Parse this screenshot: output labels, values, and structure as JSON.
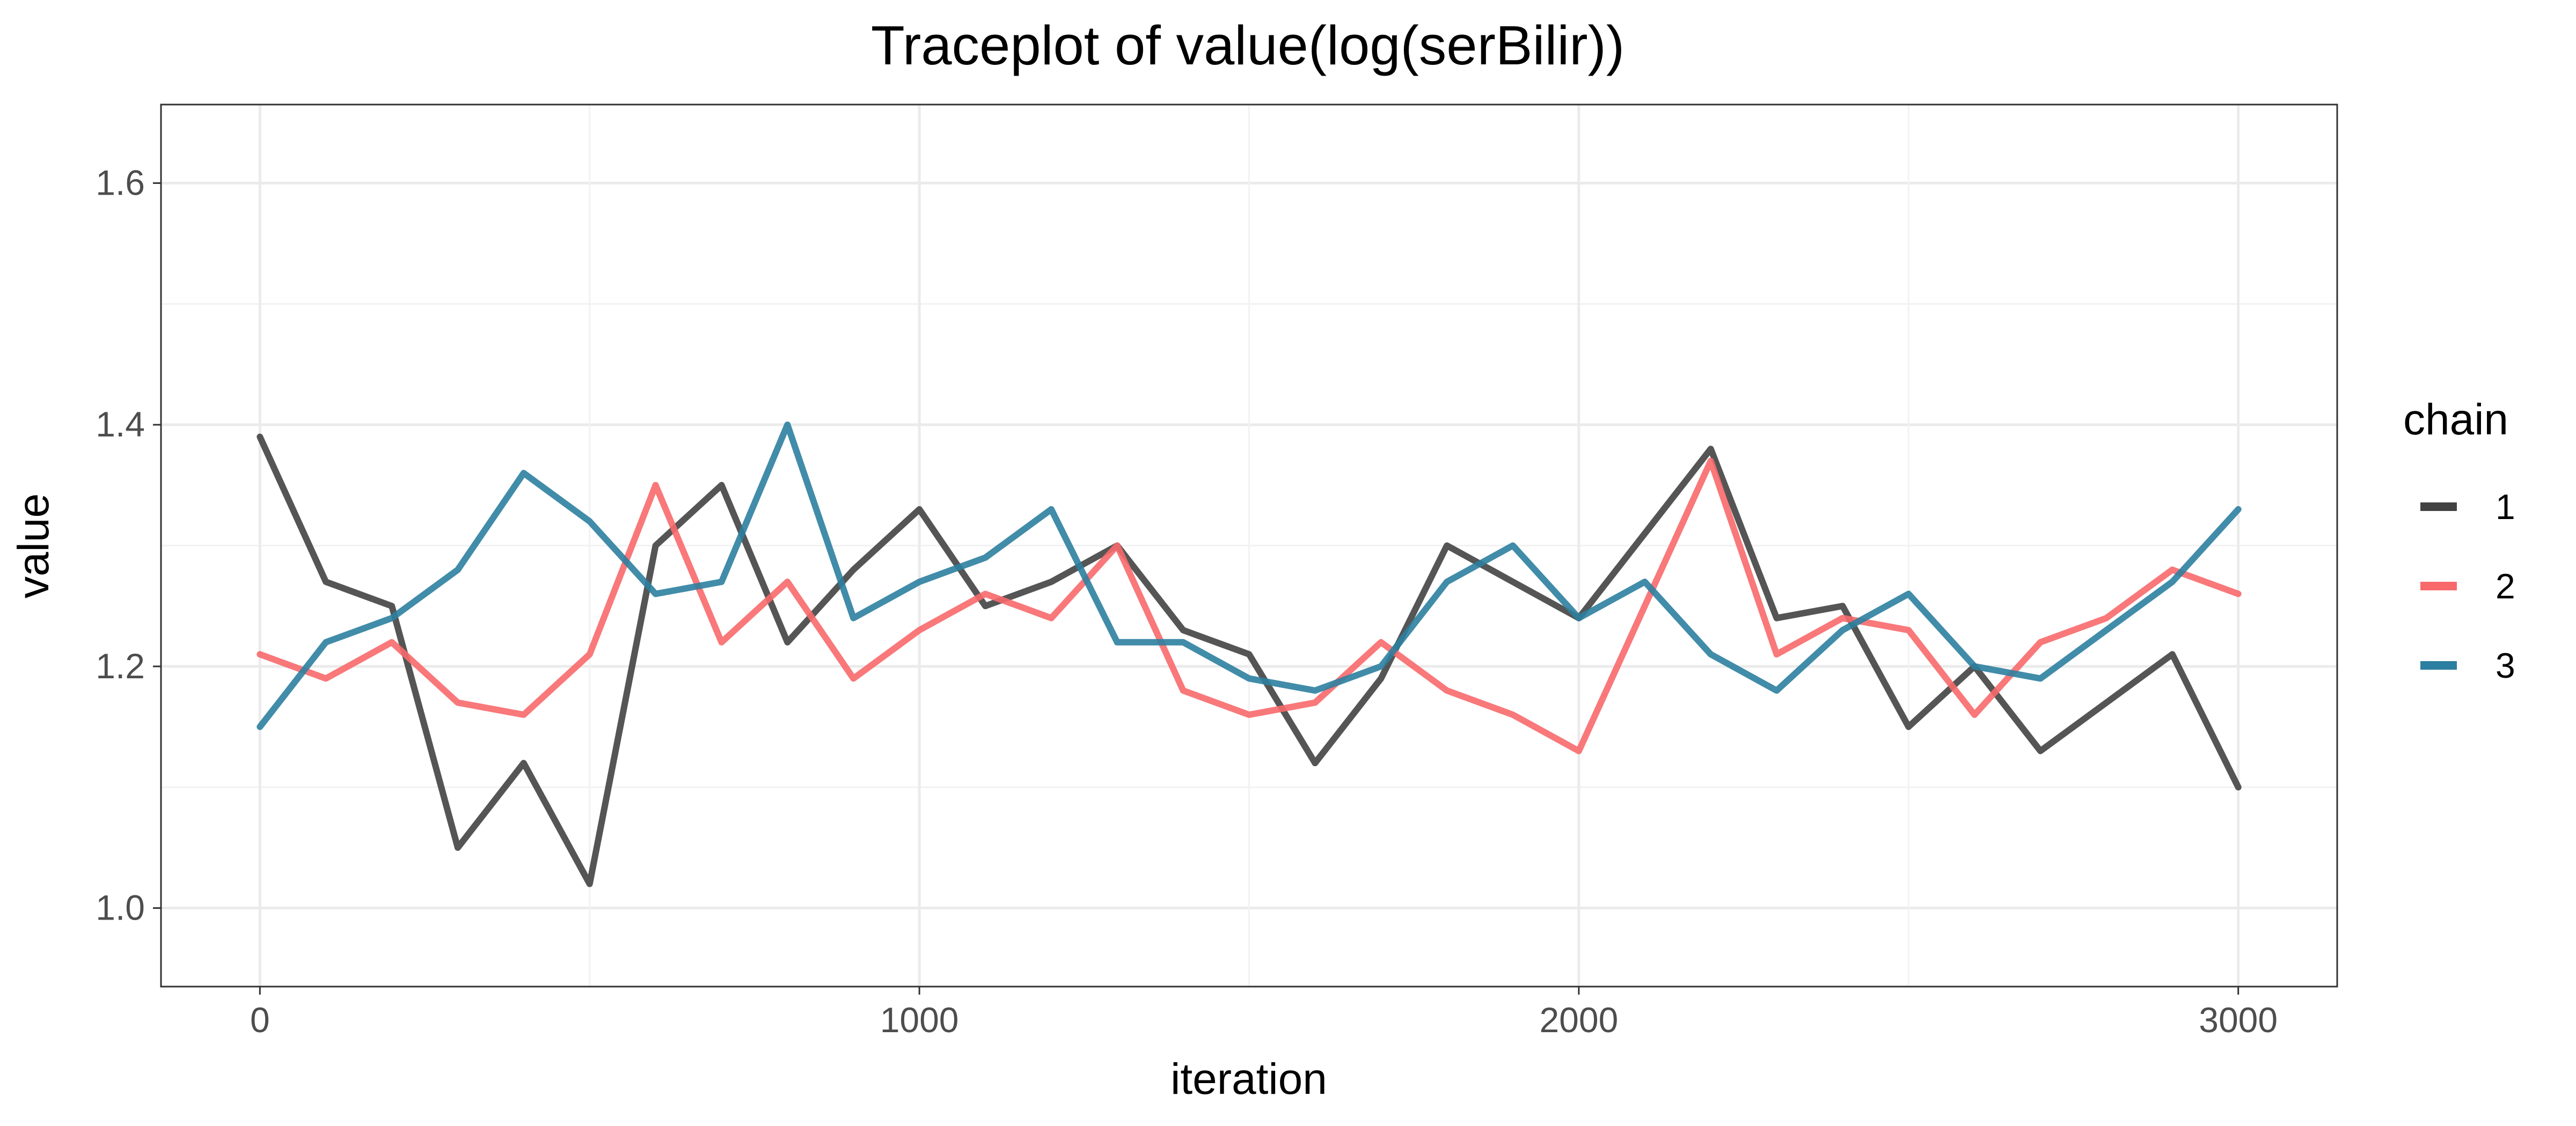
{
  "chart_data": {
    "type": "line",
    "title": "Traceplot of  value(log(serBilir))",
    "xlabel": "iteration",
    "ylabel": "value",
    "xlim": [
      -150,
      3150
    ],
    "ylim": [
      0.935,
      1.665
    ],
    "x_ticks": [
      0,
      1000,
      2000,
      3000
    ],
    "y_ticks": [
      1.0,
      1.2,
      1.4,
      1.6
    ],
    "y_tick_labels": [
      "1.0",
      "1.2",
      "1.4",
      "1.6"
    ],
    "x_tick_labels": [
      "0",
      "1000",
      "2000",
      "3000"
    ],
    "grid": true,
    "legend": {
      "title": "chain",
      "position": "right"
    },
    "series": [
      {
        "name": "1",
        "color": "#424242",
        "x": [
          0,
          100,
          200,
          300,
          400,
          500,
          600,
          700,
          800,
          900,
          1000,
          1100,
          1200,
          1300,
          1400,
          1500,
          1600,
          1700,
          1800,
          1900,
          2000,
          2100,
          2200,
          2300,
          2400,
          2500,
          2600,
          2700,
          2800,
          2900,
          3000
        ],
        "values": [
          1.39,
          1.27,
          1.25,
          1.05,
          1.12,
          1.02,
          1.3,
          1.35,
          1.22,
          1.28,
          1.33,
          1.25,
          1.27,
          1.3,
          1.23,
          1.21,
          1.12,
          1.19,
          1.3,
          1.27,
          1.24,
          1.31,
          1.38,
          1.24,
          1.25,
          1.15,
          1.2,
          1.13,
          1.17,
          1.21,
          1.1
        ]
      },
      {
        "name": "2",
        "color": "#F8696B",
        "x": [
          0,
          100,
          200,
          300,
          400,
          500,
          600,
          700,
          800,
          900,
          1000,
          1100,
          1200,
          1300,
          1400,
          1500,
          1600,
          1700,
          1800,
          1900,
          2000,
          2100,
          2200,
          2300,
          2400,
          2500,
          2600,
          2700,
          2800,
          2900,
          3000
        ],
        "values": [
          1.21,
          1.19,
          1.22,
          1.17,
          1.16,
          1.21,
          1.35,
          1.22,
          1.27,
          1.19,
          1.23,
          1.26,
          1.24,
          1.3,
          1.18,
          1.16,
          1.17,
          1.22,
          1.18,
          1.16,
          1.13,
          1.25,
          1.37,
          1.21,
          1.24,
          1.23,
          1.16,
          1.22,
          1.24,
          1.28,
          1.26
        ]
      },
      {
        "name": "3",
        "color": "#2C7FA0",
        "x": [
          0,
          100,
          200,
          300,
          400,
          500,
          600,
          700,
          800,
          900,
          1000,
          1100,
          1200,
          1300,
          1400,
          1500,
          1600,
          1700,
          1800,
          1900,
          2000,
          2100,
          2200,
          2300,
          2400,
          2500,
          2600,
          2700,
          2800,
          2900,
          3000
        ],
        "values": [
          1.15,
          1.22,
          1.24,
          1.28,
          1.36,
          1.32,
          1.26,
          1.27,
          1.4,
          1.24,
          1.27,
          1.29,
          1.33,
          1.22,
          1.22,
          1.19,
          1.18,
          1.2,
          1.27,
          1.3,
          1.24,
          1.27,
          1.21,
          1.18,
          1.23,
          1.26,
          1.2,
          1.19,
          1.23,
          1.27,
          1.33
        ]
      }
    ]
  }
}
